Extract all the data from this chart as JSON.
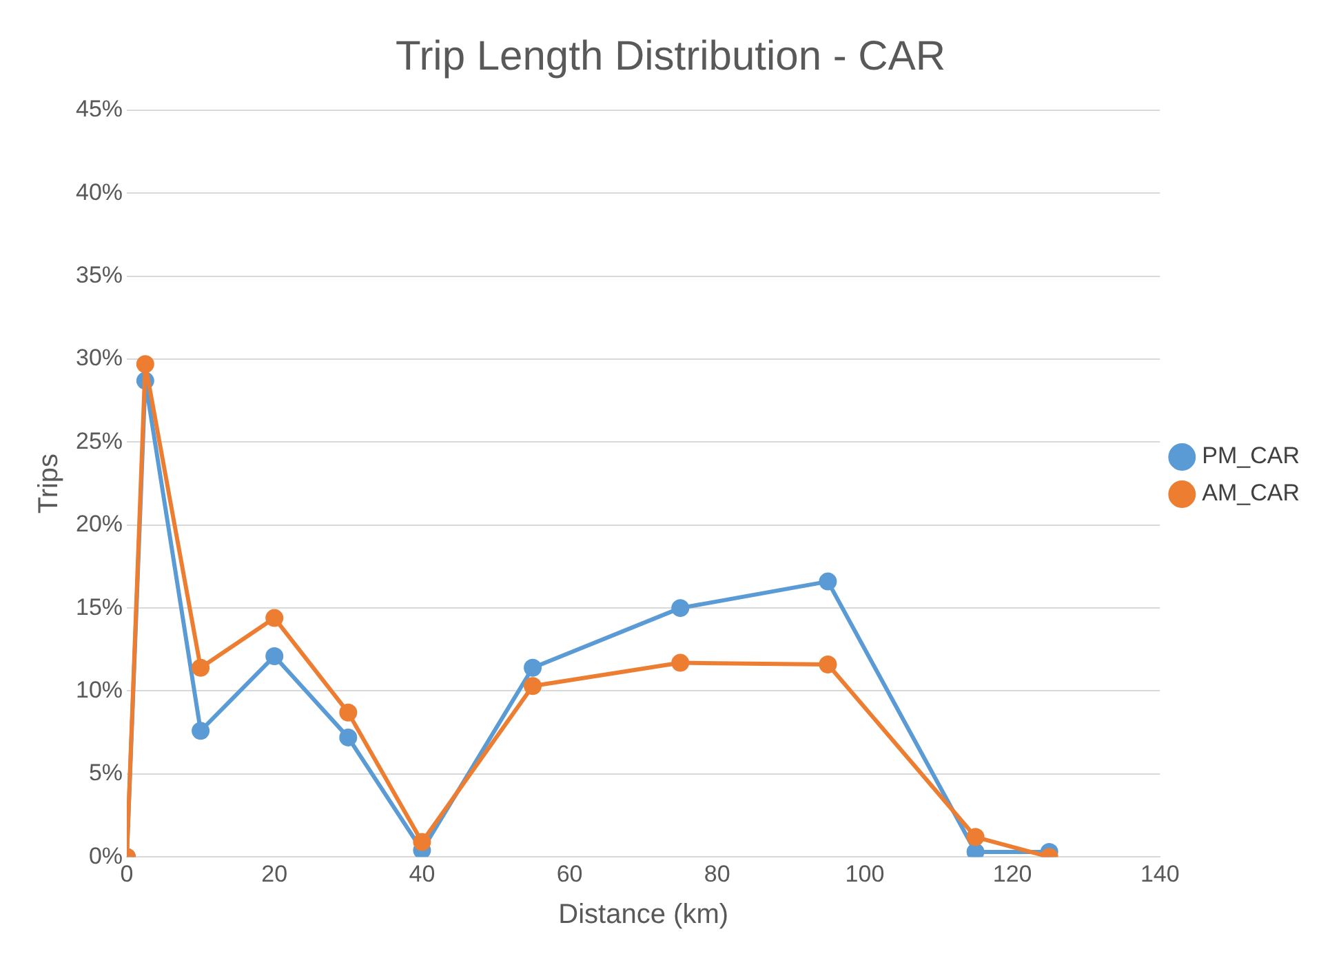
{
  "chart_data": {
    "type": "line",
    "title": "Trip Length Distribution - CAR",
    "xlabel": "Distance (km)",
    "ylabel": "Trips",
    "x": [
      0,
      2.5,
      10,
      20,
      30,
      40,
      55,
      75,
      95,
      115,
      125
    ],
    "series": [
      {
        "name": "PM_CAR",
        "color": "#5b9bd5",
        "values": [
          0,
          28.7,
          7.6,
          12.1,
          7.2,
          0.4,
          11.4,
          15.0,
          16.6,
          0.3,
          0.3
        ]
      },
      {
        "name": "AM_CAR",
        "color": "#ed7d31",
        "values": [
          0,
          29.7,
          11.4,
          14.4,
          8.7,
          0.9,
          10.3,
          11.7,
          11.6,
          1.2,
          0
        ]
      }
    ],
    "xlim": [
      0,
      140
    ],
    "xticks": [
      0,
      20,
      40,
      60,
      80,
      100,
      120,
      140
    ],
    "ylim": [
      0,
      45
    ],
    "yticks": [
      {
        "value": 0,
        "label": "0%"
      },
      {
        "value": 5,
        "label": "5%"
      },
      {
        "value": 10,
        "label": "10%"
      },
      {
        "value": 15,
        "label": "15%"
      },
      {
        "value": 20,
        "label": "20%"
      },
      {
        "value": 25,
        "label": "25%"
      },
      {
        "value": 30,
        "label": "30%"
      },
      {
        "value": 35,
        "label": "35%"
      },
      {
        "value": 40,
        "label": "40%"
      },
      {
        "value": 45,
        "label": "45%"
      }
    ],
    "grid": "y",
    "legend": "right",
    "marker": "circle",
    "line_style": "solid"
  }
}
